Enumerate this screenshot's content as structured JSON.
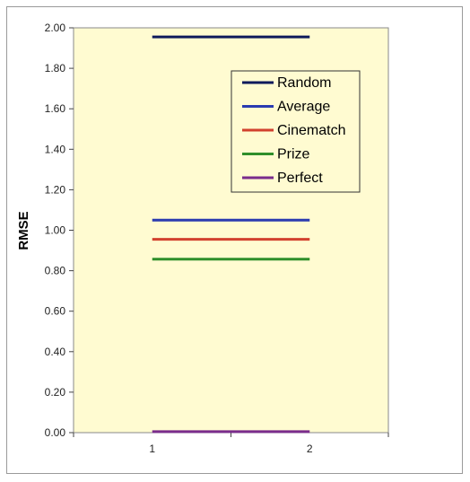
{
  "chart_data": {
    "type": "line",
    "title": "",
    "xlabel": "",
    "ylabel": "RMSE",
    "x": [
      1,
      2
    ],
    "xlim": [
      0.5,
      2.5
    ],
    "ylim": [
      0,
      2
    ],
    "ytick_step": 0.2,
    "grid": false,
    "legend_position": "top-right",
    "plot_background": "#fffbd1",
    "series": [
      {
        "name": "Random",
        "values": [
          1.955,
          1.955
        ],
        "color": "#0e1a5c"
      },
      {
        "name": "Average",
        "values": [
          1.05,
          1.05
        ],
        "color": "#2a3bb0"
      },
      {
        "name": "Cinematch",
        "values": [
          0.955,
          0.955
        ],
        "color": "#d2412e"
      },
      {
        "name": "Prize",
        "values": [
          0.857,
          0.857
        ],
        "color": "#2f8f2a"
      },
      {
        "name": "Perfect",
        "values": [
          0.005,
          0.005
        ],
        "color": "#7a2c8c"
      }
    ]
  }
}
